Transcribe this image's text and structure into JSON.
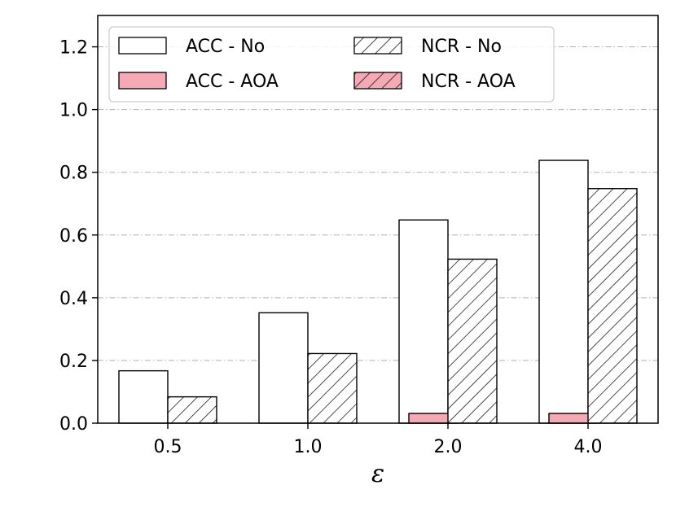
{
  "chart_data": {
    "type": "bar",
    "title": "",
    "xlabel": "ε",
    "ylabel": "",
    "categories": [
      "0.5",
      "1.0",
      "2.0",
      "4.0"
    ],
    "ylim": [
      0,
      1.3
    ],
    "yticks": [
      "0.0",
      "0.2",
      "0.4",
      "0.6",
      "0.8",
      "1.0",
      "1.2"
    ],
    "grid": "horizontal dash-dot",
    "legend_placement": "top-left, 2 columns",
    "series": [
      {
        "name": "ACC - No",
        "values": [
          0.167,
          0.352,
          0.648,
          0.838
        ],
        "fill": "#ffffff",
        "hatch": false
      },
      {
        "name": "NCR - No",
        "values": [
          0.084,
          0.222,
          0.523,
          0.748
        ],
        "fill": "#ffffff",
        "hatch": true
      },
      {
        "name": "ACC - AOA",
        "values": [
          0.0,
          0.0,
          0.031,
          0.031
        ],
        "fill": "#f4a9b4",
        "hatch": false
      },
      {
        "name": "NCR - AOA",
        "values": [
          0.0,
          0.0,
          0.0,
          0.0
        ],
        "fill": "#f4a9b4",
        "hatch": true
      }
    ]
  }
}
